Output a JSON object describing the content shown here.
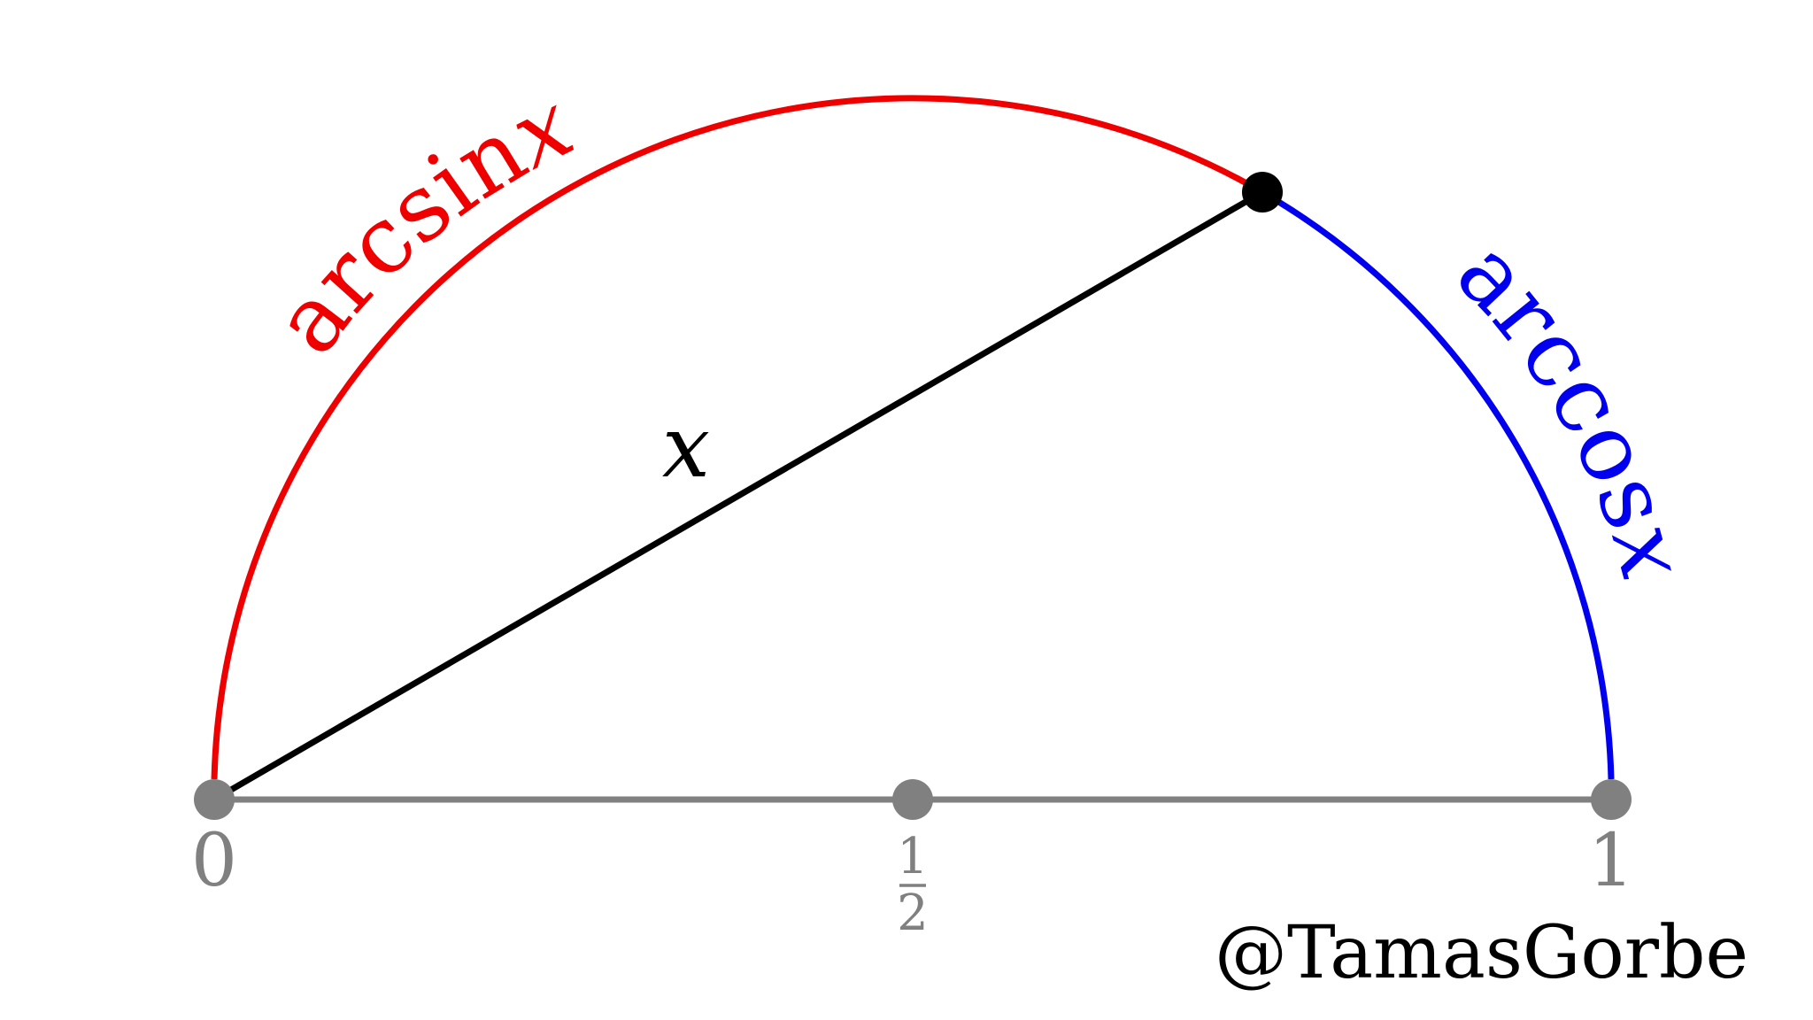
{
  "diagram": {
    "arc_left_label": {
      "func": "arcsin",
      "var": "x"
    },
    "arc_right_label": {
      "func": "arccos",
      "var": "x"
    },
    "chord_label": "x",
    "tick_labels": {
      "zero": "0",
      "half_num": "1",
      "half_den": "2",
      "one": "1"
    },
    "watermark": "@TamasGorbe",
    "colors": {
      "arcsin_arc": "#ee0000",
      "arccos_arc": "#0000ee",
      "chord": "#000000",
      "axis": "#808080",
      "tick_text": "#808080",
      "point": "#000000",
      "text": "#000000"
    }
  }
}
